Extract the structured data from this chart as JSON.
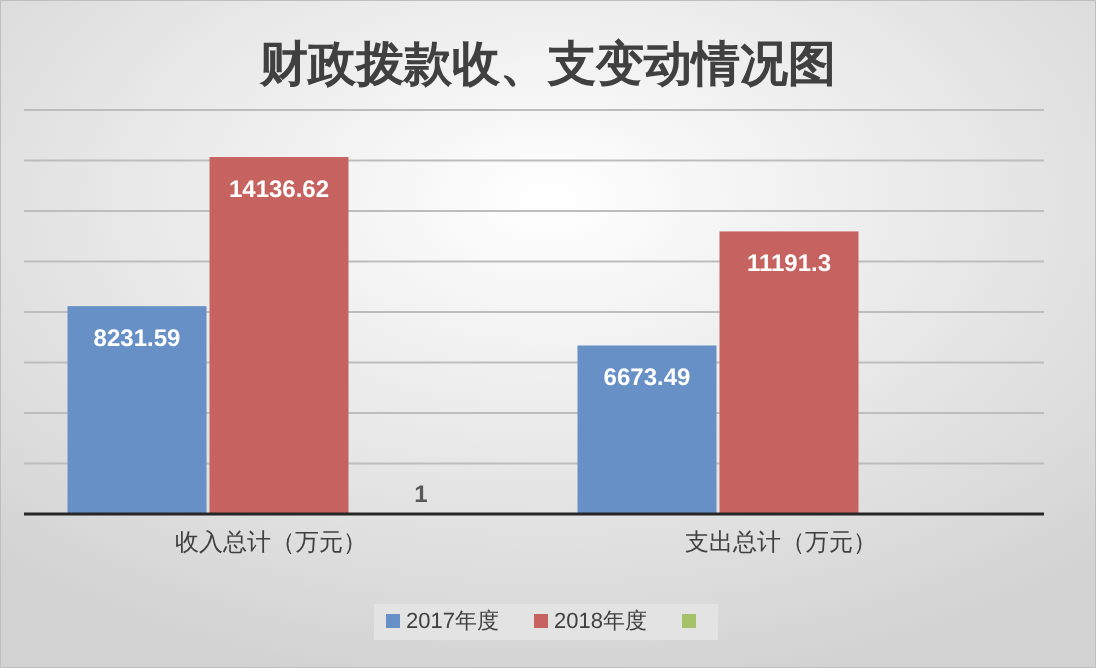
{
  "chart_data": {
    "type": "bar",
    "title": "财政拨款收、支变动情况图",
    "categories": [
      "收入总计（万元）",
      "支出总计（万元）"
    ],
    "series": [
      {
        "name": "2017年度",
        "color": "#6690c6",
        "values": [
          8231.59,
          6673.49
        ]
      },
      {
        "name": "2018年度",
        "color": "#c66260",
        "values": [
          14136.62,
          11191.3
        ]
      },
      {
        "color": "#a5c26a",
        "values": [
          1,
          null
        ]
      }
    ],
    "ylim": [
      0,
      16000
    ],
    "yticks": [
      {
        "value": 0,
        "label": null
      },
      {
        "value": 2000,
        "label": null
      },
      {
        "value": 4000,
        "label": null
      },
      {
        "value": 6000,
        "label": null
      },
      {
        "value": 8000,
        "label": null
      },
      {
        "value": 10000,
        "label": null
      },
      {
        "value": 12000,
        "label": null
      },
      {
        "value": 14000,
        "label": null
      },
      {
        "value": 16000,
        "label": null
      }
    ],
    "tick_labels": "x",
    "grid": "y",
    "legend": "bottom",
    "data_labels": true
  }
}
